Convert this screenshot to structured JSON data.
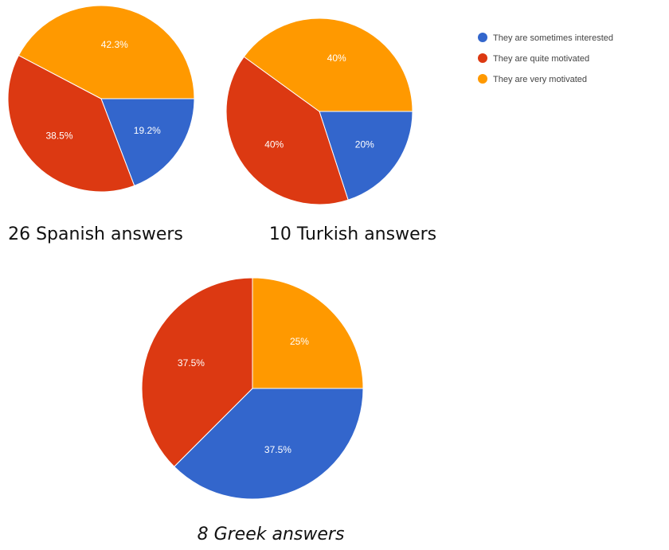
{
  "legend": [
    {
      "label": "They are sometimes interested",
      "color": "#3366cc"
    },
    {
      "label": "They are quite motivated",
      "color": "#dc3912"
    },
    {
      "label": "They are very motivated",
      "color": "#ff9900"
    }
  ],
  "chart_data": [
    {
      "type": "pie",
      "caption": "26 Spanish answers",
      "slices": [
        {
          "label": "They are sometimes interested",
          "value": 19.2,
          "text": "19.2%",
          "color": "#3366cc"
        },
        {
          "label": "They are quite motivated",
          "value": 38.5,
          "text": "38.5%",
          "color": "#dc3912"
        },
        {
          "label": "They are very motivated",
          "value": 42.3,
          "text": "42.3%",
          "color": "#ff9900"
        }
      ]
    },
    {
      "type": "pie",
      "caption": "10 Turkish answers",
      "slices": [
        {
          "label": "They are sometimes interested",
          "value": 20,
          "text": "20%",
          "color": "#3366cc"
        },
        {
          "label": "They are quite motivated",
          "value": 40,
          "text": "40%",
          "color": "#dc3912"
        },
        {
          "label": "They are very motivated",
          "value": 40,
          "text": "40%",
          "color": "#ff9900"
        }
      ]
    },
    {
      "type": "pie",
      "caption": "8 Greek answers",
      "slices": [
        {
          "label": "They are very motivated",
          "value": 25,
          "text": "25%",
          "color": "#ff9900"
        },
        {
          "label": "They are sometimes interested",
          "value": 37.5,
          "text": "37.5%",
          "color": "#3366cc"
        },
        {
          "label": "They are quite motivated",
          "value": 37.5,
          "text": "37.5%",
          "color": "#dc3912"
        }
      ]
    }
  ]
}
